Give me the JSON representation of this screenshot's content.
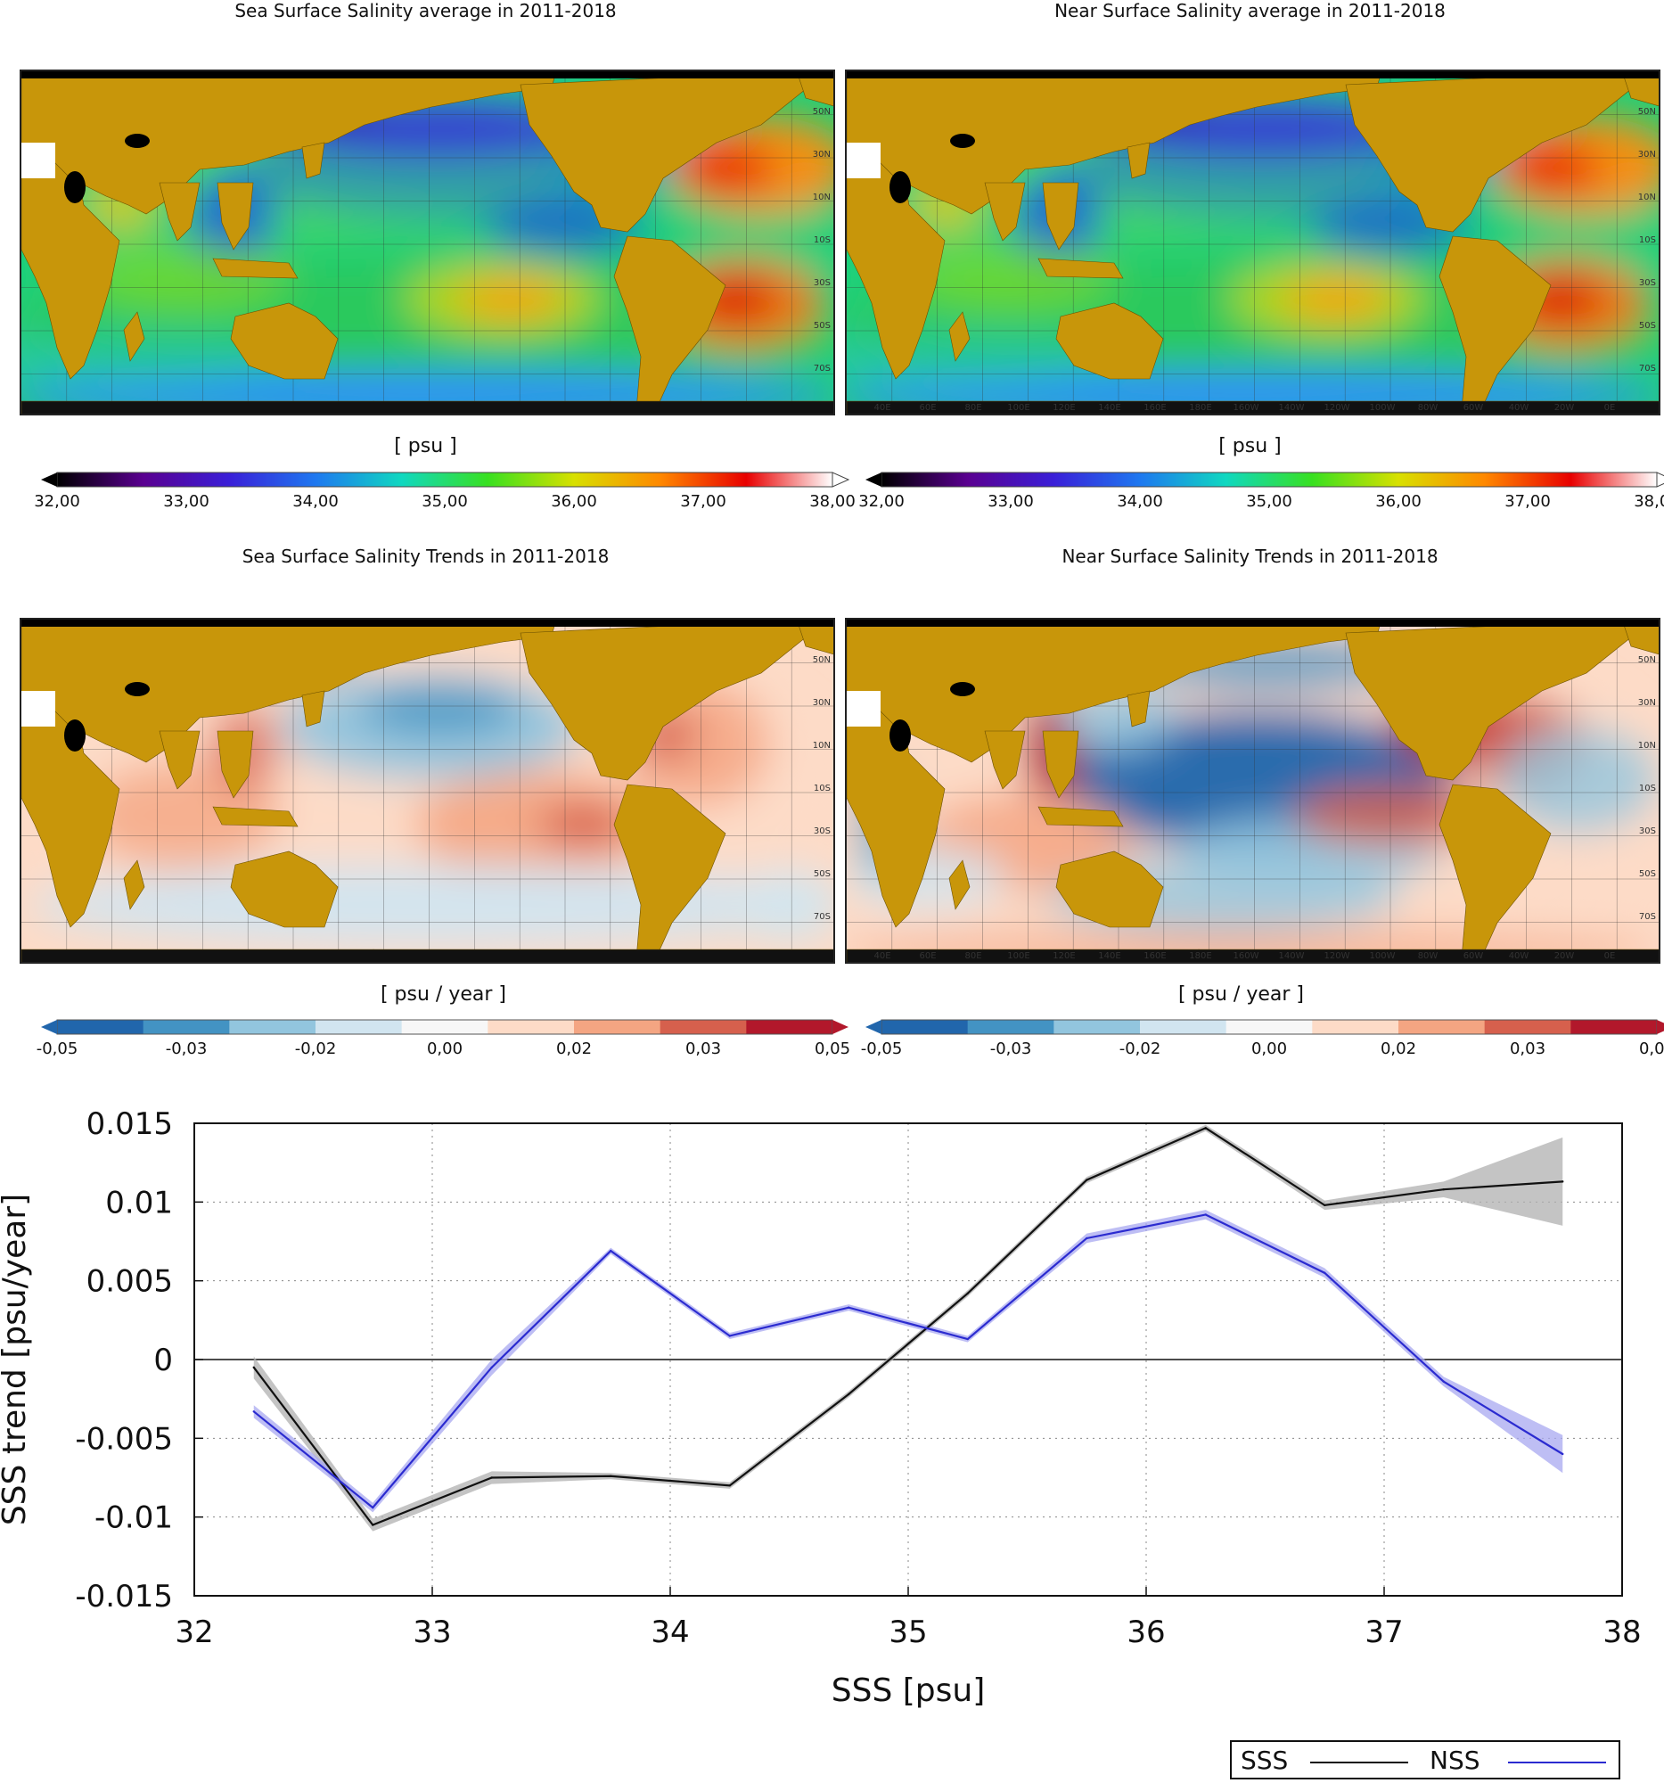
{
  "maps": [
    {
      "title": "Sea Surface Salinity average in 2011-2018",
      "unit": "[ psu ]",
      "scheme": "rainbow",
      "variant": "sss"
    },
    {
      "title": "Near Surface Salinity average in 2011-2018",
      "unit": "[ psu ]",
      "scheme": "rainbow",
      "variant": "nss"
    },
    {
      "title": "Sea Surface Salinity Trends in 2011-2018",
      "unit": "[ psu / year ]",
      "scheme": "diverging",
      "variant": "sss"
    },
    {
      "title": "Near Surface Salinity Trends in 2011-2018",
      "unit": "[ psu / year ]",
      "scheme": "diverging",
      "variant": "nss"
    }
  ],
  "map_lat_labels": [
    "50N",
    "30N",
    "10N",
    "10S",
    "30S",
    "50S",
    "70S"
  ],
  "map_lon_labels": [
    "40E",
    "60E",
    "80E",
    "100E",
    "120E",
    "140E",
    "160E",
    "180E",
    "160W",
    "140W",
    "120W",
    "100W",
    "80W",
    "60W",
    "40W",
    "20W",
    "0E"
  ],
  "colorbars": {
    "salinity": {
      "ticks": [
        "32,00",
        "33,00",
        "34,00",
        "35,00",
        "36,00",
        "37,00",
        "38,00"
      ],
      "colors": [
        "#000000",
        "#5a0090",
        "#3a1fd8",
        "#1e78f0",
        "#10d8c0",
        "#38e020",
        "#d8e000",
        "#ff8800",
        "#e80000",
        "#ffffff"
      ]
    },
    "trend": {
      "ticks": [
        "-0,05",
        "-0,03",
        "-0,02",
        "0,00",
        "0,02",
        "0,03",
        "0,05"
      ],
      "colors": [
        "#2166ac",
        "#4393c3",
        "#92c5de",
        "#d1e5f0",
        "#f7f7f7",
        "#fddbc7",
        "#f4a582",
        "#d6604d",
        "#b2182b"
      ]
    }
  },
  "map_colors": {
    "land": "#c8960a",
    "border": "#111111"
  },
  "chart_data": {
    "type": "line",
    "title": "",
    "xlabel": "SSS [psu]",
    "ylabel": "SSS trend [psu/year]",
    "xlim": [
      32,
      38
    ],
    "ylim": [
      -0.015,
      0.015
    ],
    "xticks": [
      "32",
      "33",
      "34",
      "35",
      "36",
      "37",
      "38"
    ],
    "yticks": [
      "0.015",
      "0.01",
      "0.005",
      "0",
      "-0.005",
      "-0.01",
      "-0.015"
    ],
    "grid": true,
    "legend": "bottom-right",
    "series": [
      {
        "name": "SSS",
        "color": "#111111",
        "band_color": "#b0b0b0",
        "x": [
          32.25,
          32.75,
          33.25,
          33.75,
          34.25,
          34.75,
          35.25,
          35.75,
          36.25,
          36.75,
          37.25,
          37.75
        ],
        "y": [
          -0.0005,
          -0.0105,
          -0.0075,
          -0.0074,
          -0.008,
          -0.0022,
          0.0042,
          0.0114,
          0.0147,
          0.0098,
          0.0108,
          0.0113
        ],
        "err": [
          0.0007,
          0.0004,
          0.0004,
          0.0002,
          0.0002,
          0.0002,
          0.0002,
          0.0002,
          0.0002,
          0.0003,
          0.0005,
          0.0028
        ]
      },
      {
        "name": "NSS",
        "color": "#2b2bd0",
        "band_color": "#a8a8f0",
        "x": [
          32.25,
          32.75,
          33.25,
          33.75,
          34.25,
          34.75,
          35.25,
          35.75,
          36.25,
          36.75,
          37.25,
          37.75
        ],
        "y": [
          -0.0033,
          -0.0094,
          -0.0005,
          0.0069,
          0.0015,
          0.0033,
          0.0013,
          0.0077,
          0.0092,
          0.0055,
          -0.0014,
          -0.006
        ],
        "err": [
          0.0004,
          0.0003,
          0.0005,
          0.0002,
          0.0002,
          0.0002,
          0.0002,
          0.0003,
          0.0003,
          0.0003,
          0.0003,
          0.0012
        ]
      }
    ]
  }
}
